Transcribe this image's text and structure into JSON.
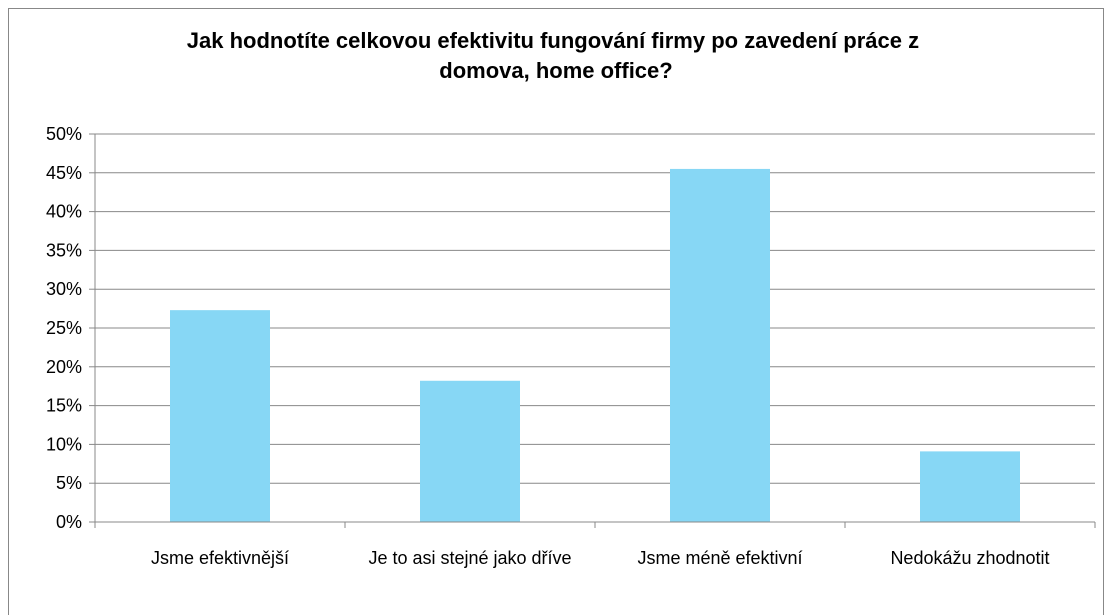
{
  "chart_data": {
    "type": "bar",
    "title": "Jak hodnotíte celkovou efektivitu fungování firmy po zavedení práce z domova, home office?",
    "categories": [
      "Jsme efektivnější",
      "Je to asi stejné jako dříve",
      "Jsme méně efektivní",
      "Nedokážu zhodnotit"
    ],
    "values": [
      27.3,
      18.2,
      45.5,
      9.1
    ],
    "color": "#87d7f5",
    "ylim": [
      0,
      50
    ],
    "yticks": [
      {
        "value": 0,
        "label": "0%"
      },
      {
        "value": 5,
        "label": "5%"
      },
      {
        "value": 10,
        "label": "10%"
      },
      {
        "value": 15,
        "label": "15%"
      },
      {
        "value": 20,
        "label": "20%"
      },
      {
        "value": 25,
        "label": "25%"
      },
      {
        "value": 30,
        "label": "30%"
      },
      {
        "value": 35,
        "label": "35%"
      },
      {
        "value": 40,
        "label": "40%"
      },
      {
        "value": 45,
        "label": "45%"
      },
      {
        "value": 50,
        "label": "50%"
      }
    ],
    "grid": true
  }
}
